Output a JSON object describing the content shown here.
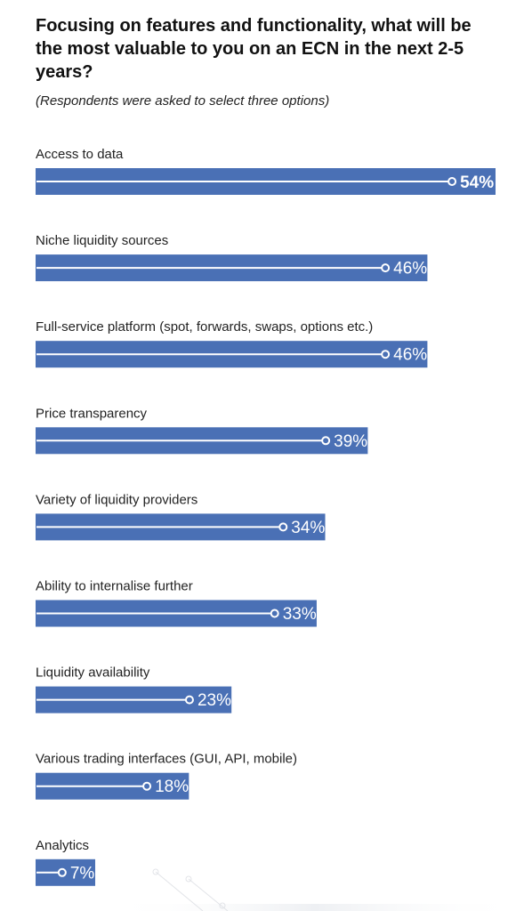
{
  "chart_data": {
    "type": "bar",
    "orientation": "horizontal",
    "title": "Focusing on features and functionality, what will be the most valuable to you on an ECN in the next 2-5 years?",
    "subtitle": "(Respondents were asked to select three options)",
    "categories": [
      "Access to data",
      "Niche liquidity sources",
      "Full-service platform (spot, forwards, swaps, options etc.)",
      "Price transparency",
      "Variety of liquidity providers",
      "Ability to internalise further",
      "Liquidity availability",
      "Various trading interfaces (GUI, API, mobile)",
      "Analytics"
    ],
    "values": [
      54,
      46,
      46,
      39,
      34,
      33,
      23,
      18,
      7
    ],
    "value_labels": [
      "54%",
      "46%",
      "46%",
      "39%",
      "34%",
      "33%",
      "23%",
      "18%",
      "7%"
    ],
    "unit": "%",
    "xlim": [
      0,
      54
    ],
    "grid": false,
    "legend": "none",
    "colors": {
      "bar": "#4a70b5",
      "bar_line": "#ffffff",
      "label_text": "#ffffff"
    }
  }
}
